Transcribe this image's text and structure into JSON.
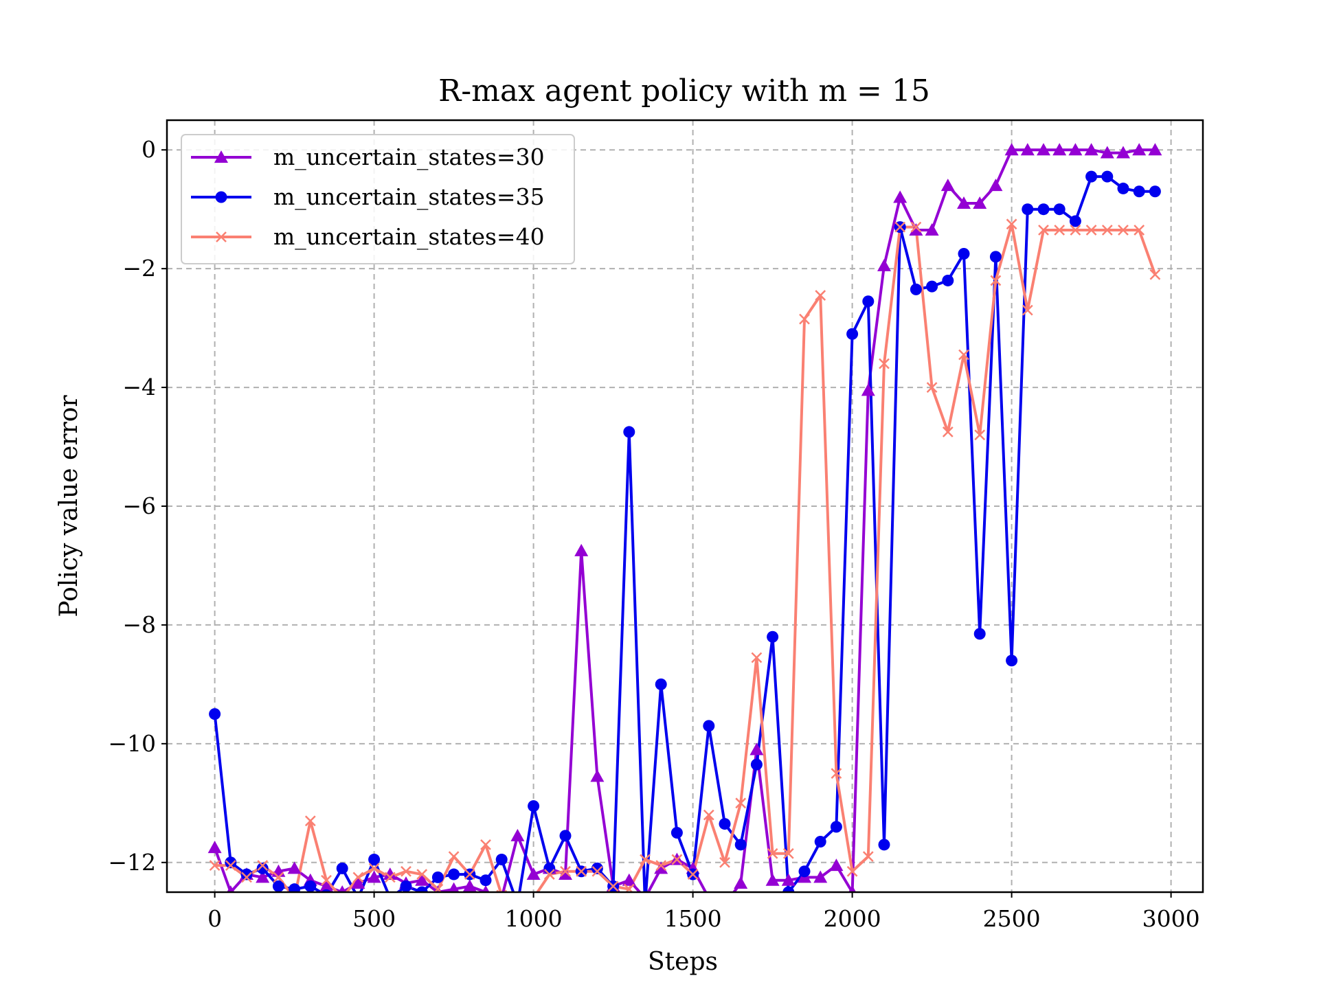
{
  "chart_data": {
    "type": "line",
    "title": "R-max agent policy with m = 15",
    "xlabel": "Steps",
    "ylabel": "Policy value error",
    "xlim": [
      -150,
      3100
    ],
    "ylim": [
      -12.5,
      0.5
    ],
    "xticks": [
      0,
      500,
      1000,
      1500,
      2000,
      2500,
      3000
    ],
    "xtick_labels": [
      "0",
      "500",
      "1000",
      "1500",
      "2000",
      "2500",
      "3000"
    ],
    "yticks": [
      0,
      -2,
      -4,
      -6,
      -8,
      -10,
      -12
    ],
    "ytick_labels": [
      "0",
      "−2",
      "−4",
      "−6",
      "−8",
      "−10",
      "−12"
    ],
    "grid": true,
    "legend_position": "upper-left",
    "x": [
      0,
      50,
      100,
      150,
      200,
      250,
      300,
      350,
      400,
      450,
      500,
      550,
      600,
      650,
      700,
      750,
      800,
      850,
      900,
      950,
      1000,
      1050,
      1100,
      1150,
      1200,
      1250,
      1300,
      1350,
      1400,
      1450,
      1500,
      1550,
      1600,
      1650,
      1700,
      1750,
      1800,
      1850,
      1900,
      1950,
      2000,
      2050,
      2100,
      2150,
      2200,
      2250,
      2300,
      2350,
      2400,
      2450,
      2500,
      2550,
      2600,
      2650,
      2700,
      2750,
      2800,
      2850,
      2900,
      2950
    ],
    "series": [
      {
        "name": "m_uncertain_states=30",
        "color": "#9400d3",
        "marker": "triangle",
        "values": [
          -11.75,
          -12.5,
          -12.2,
          -12.25,
          -12.15,
          -12.1,
          -12.3,
          -12.4,
          -12.5,
          -12.35,
          -12.25,
          -12.2,
          -12.35,
          -12.3,
          -12.5,
          -12.45,
          -12.4,
          -12.5,
          -12.6,
          -11.55,
          -12.2,
          -12.1,
          -12.2,
          -6.75,
          -10.55,
          -12.4,
          -12.3,
          -12.6,
          -12.1,
          -11.95,
          -12.1,
          -12.6,
          -12.7,
          -12.35,
          -10.1,
          -12.3,
          -12.3,
          -12.25,
          -12.25,
          -12.05,
          -12.5,
          -4.05,
          -1.95,
          -0.8,
          -1.35,
          -1.35,
          -0.6,
          -0.9,
          -0.9,
          -0.6,
          0.0,
          0.0,
          0.0,
          0.0,
          0.0,
          0.0,
          -0.05,
          -0.05,
          0.0,
          0.0
        ]
      },
      {
        "name": "m_uncertain_states=35",
        "color": "#0000ee",
        "marker": "circle",
        "values": [
          -9.5,
          -12.0,
          -12.2,
          -12.1,
          -12.4,
          -12.45,
          -12.4,
          -12.55,
          -12.1,
          -12.6,
          -11.95,
          -12.6,
          -12.4,
          -12.5,
          -12.25,
          -12.2,
          -12.2,
          -12.3,
          -11.95,
          -12.7,
          -11.05,
          -12.1,
          -11.55,
          -12.15,
          -12.1,
          -12.4,
          -4.75,
          -12.7,
          -9.0,
          -11.5,
          -12.2,
          -9.7,
          -11.35,
          -11.7,
          -10.35,
          -8.2,
          -12.5,
          -12.15,
          -11.65,
          -11.4,
          -3.1,
          -2.55,
          -11.7,
          -1.3,
          -2.35,
          -2.3,
          -2.2,
          -1.75,
          -8.15,
          -1.8,
          -8.6,
          -1.0,
          -1.0,
          -1.0,
          -1.2,
          -0.45,
          -0.45,
          -0.65,
          -0.7,
          -0.7
        ]
      },
      {
        "name": "m_uncertain_states=40",
        "color": "#fa8072",
        "marker": "x",
        "values": [
          -12.05,
          -12.05,
          -12.25,
          -12.05,
          -12.25,
          -12.6,
          -11.3,
          -12.3,
          -12.6,
          -12.25,
          -12.1,
          -12.25,
          -12.15,
          -12.2,
          -12.45,
          -11.9,
          -12.2,
          -11.7,
          -12.55,
          -12.6,
          -12.6,
          -12.2,
          -12.15,
          -12.15,
          -12.15,
          -12.4,
          -12.45,
          -11.95,
          -12.05,
          -11.95,
          -12.2,
          -11.2,
          -12.0,
          -11.0,
          -8.55,
          -11.85,
          -11.85,
          -2.85,
          -2.45,
          -10.5,
          -12.15,
          -11.9,
          -3.6,
          -1.3,
          -1.3,
          -4.0,
          -4.75,
          -3.45,
          -4.8,
          -2.2,
          -1.25,
          -2.7,
          -1.35,
          -1.35,
          -1.35,
          -1.35,
          -1.35,
          -1.35,
          -1.35,
          -2.1
        ]
      }
    ]
  }
}
